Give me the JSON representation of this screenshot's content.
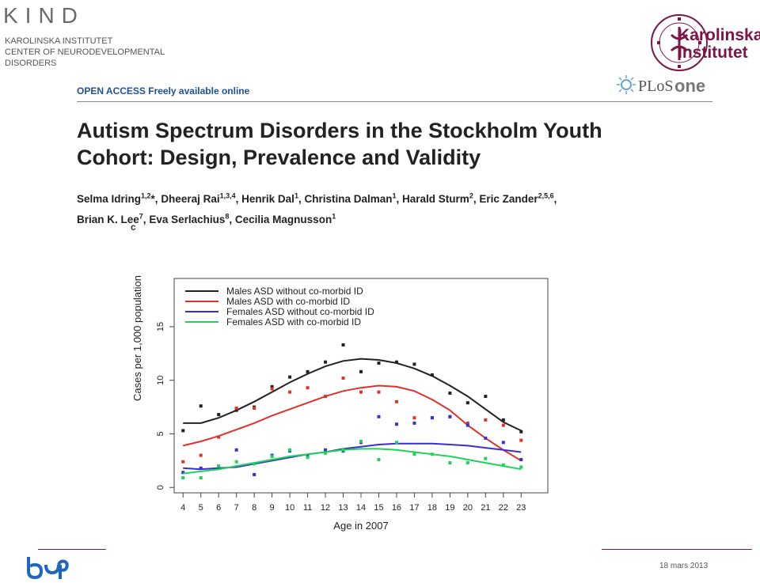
{
  "header": {
    "kind_logo": "KIND",
    "kind_subtitle_lines": [
      "KAROLINSKA INSTITUTET",
      "CENTER OF NEURODEVELOPMENTAL",
      "DISORDERS"
    ],
    "ki_name_line1": "Karolinska",
    "ki_name_line2": "Institutet",
    "plos_text": "PLoS",
    "plos_one": "one"
  },
  "paper": {
    "open_access": "OPEN ACCESS Freely available online",
    "title_line1": "Autism Spectrum Disorders in the Stockholm Youth",
    "title_line2": "Cohort: Design, Prevalence and Validity",
    "panel_letter": "c"
  },
  "authors": [
    {
      "name": "Selma Idring",
      "sup": "1,2",
      "suffix": "*, "
    },
    {
      "name": "Dheeraj Rai",
      "sup": "1,3,4",
      "suffix": ", "
    },
    {
      "name": "Henrik Dal",
      "sup": "1",
      "suffix": ", "
    },
    {
      "name": "Christina Dalman",
      "sup": "1",
      "suffix": ", "
    },
    {
      "name": "Harald Sturm",
      "sup": "2",
      "suffix": ", "
    },
    {
      "name": "Eric Zander",
      "sup": "2,5,6",
      "suffix": ","
    },
    {
      "name": "Brian K. Lee",
      "sup": "7",
      "suffix": ", "
    },
    {
      "name": "Eva Serlachius",
      "sup": "8",
      "suffix": ", "
    },
    {
      "name": "Cecilia Magnusson",
      "sup": "1",
      "suffix": ""
    }
  ],
  "footer": {
    "date": "18 mars 2013"
  },
  "colors": {
    "males_no_id": "#222222",
    "males_id": "#e0312a",
    "females_no_id": "#3a2fd0",
    "females_id": "#1fd35a",
    "brand": "#7c1548"
  },
  "chart_data": {
    "type": "scatter",
    "xlabel": "Age in 2007",
    "ylabel": "Cases per 1,000 population",
    "x": [
      4,
      5,
      6,
      7,
      8,
      9,
      10,
      11,
      12,
      13,
      14,
      15,
      16,
      17,
      18,
      19,
      20,
      21,
      22,
      23
    ],
    "xlim": [
      3.5,
      24.5
    ],
    "ylim": [
      -0.5,
      19.5
    ],
    "yticks": [
      0,
      5,
      10,
      15
    ],
    "legend_position": "top-left",
    "series": [
      {
        "name": "Males ASD without co-morbid ID",
        "color": "#222222",
        "points": [
          5.3,
          7.6,
          6.8,
          7.2,
          7.5,
          9.4,
          10.3,
          10.8,
          11.7,
          13.3,
          10.8,
          11.6,
          11.7,
          11.5,
          10.5,
          8.8,
          7.9,
          8.5,
          6.3,
          5.2
        ],
        "fit": [
          6.0,
          6.0,
          6.5,
          7.2,
          8.0,
          8.9,
          9.8,
          10.6,
          11.3,
          11.8,
          12.0,
          11.9,
          11.6,
          11.1,
          10.4,
          9.5,
          8.5,
          7.3,
          6.1,
          5.3
        ]
      },
      {
        "name": "Males ASD with co-morbid ID",
        "color": "#e0312a",
        "points": [
          2.4,
          3.0,
          4.7,
          7.4,
          7.4,
          9.2,
          8.9,
          9.3,
          8.5,
          10.2,
          8.9,
          8.9,
          8.0,
          6.5,
          6.5,
          6.6,
          6.0,
          6.3,
          5.8,
          4.4
        ],
        "fit": [
          3.9,
          4.3,
          4.8,
          5.4,
          6.0,
          6.7,
          7.3,
          7.9,
          8.5,
          9.0,
          9.3,
          9.5,
          9.4,
          9.0,
          8.2,
          7.2,
          5.8,
          4.6,
          3.5,
          2.5
        ]
      },
      {
        "name": "Females ASD without co-morbid ID",
        "color": "#3a2fd0",
        "points": [
          1.4,
          1.8,
          1.9,
          3.5,
          1.2,
          3.0,
          3.4,
          3.0,
          3.5,
          3.4,
          4.2,
          6.6,
          5.9,
          6.0,
          6.5,
          6.6,
          5.8,
          4.6,
          4.2,
          2.6
        ],
        "fit": [
          1.8,
          1.7,
          1.8,
          1.9,
          2.2,
          2.5,
          2.8,
          3.1,
          3.3,
          3.6,
          3.8,
          4.0,
          4.1,
          4.1,
          4.1,
          4.0,
          3.9,
          3.7,
          3.5,
          3.3
        ]
      },
      {
        "name": "Females ASD with co-morbid ID",
        "color": "#1fd35a",
        "points": [
          0.9,
          0.9,
          2.0,
          2.4,
          2.2,
          2.9,
          3.5,
          2.8,
          3.2,
          3.5,
          4.3,
          2.6,
          4.2,
          3.1,
          3.1,
          2.3,
          2.3,
          2.7,
          2.1,
          1.9
        ],
        "fit": [
          1.3,
          1.5,
          1.7,
          2.0,
          2.3,
          2.6,
          2.9,
          3.1,
          3.3,
          3.5,
          3.6,
          3.6,
          3.5,
          3.3,
          3.1,
          2.9,
          2.6,
          2.3,
          2.0,
          1.7
        ]
      }
    ]
  }
}
